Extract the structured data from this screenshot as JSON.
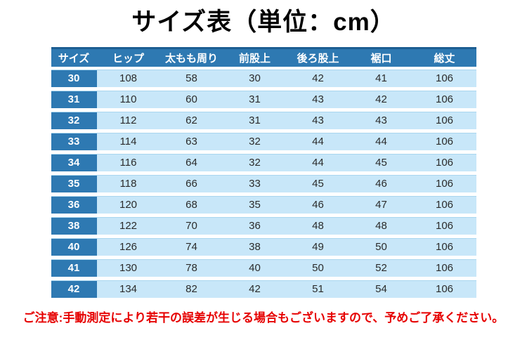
{
  "title": "サイズ表（単位：cm）",
  "chart_data": {
    "type": "table",
    "title": "サイズ表（単位：cm）",
    "unit": "cm",
    "columns": [
      "サイズ",
      "ヒップ",
      "太もも周り",
      "前股上",
      "後ろ股上",
      "裾口",
      "総丈"
    ],
    "rows": [
      [
        "30",
        108,
        58,
        30,
        42,
        41,
        106
      ],
      [
        "31",
        110,
        60,
        31,
        43,
        42,
        106
      ],
      [
        "32",
        112,
        62,
        31,
        43,
        43,
        106
      ],
      [
        "33",
        114,
        63,
        32,
        44,
        44,
        106
      ],
      [
        "34",
        116,
        64,
        32,
        44,
        45,
        106
      ],
      [
        "35",
        118,
        66,
        33,
        45,
        46,
        106
      ],
      [
        "36",
        120,
        68,
        35,
        46,
        47,
        106
      ],
      [
        "38",
        122,
        70,
        36,
        48,
        48,
        106
      ],
      [
        "40",
        126,
        74,
        38,
        49,
        50,
        106
      ],
      [
        "41",
        130,
        78,
        40,
        50,
        52,
        106
      ],
      [
        "42",
        134,
        82,
        42,
        51,
        54,
        106
      ]
    ]
  },
  "note": "ご注意:手動測定により若干の誤差が生じる場合もございますので、予めご了承ください。",
  "colors": {
    "header_bg": "#2e79b2",
    "header_top_border": "#1d5e92",
    "size_cell_bg": "#2e79b2",
    "row_bg": "#c8e7f9",
    "row_top_border": "#a9d6ef",
    "note_text": "#e60000",
    "cell_text": "#2b2b2b",
    "header_text": "#ffffff",
    "title_text": "#000000"
  }
}
